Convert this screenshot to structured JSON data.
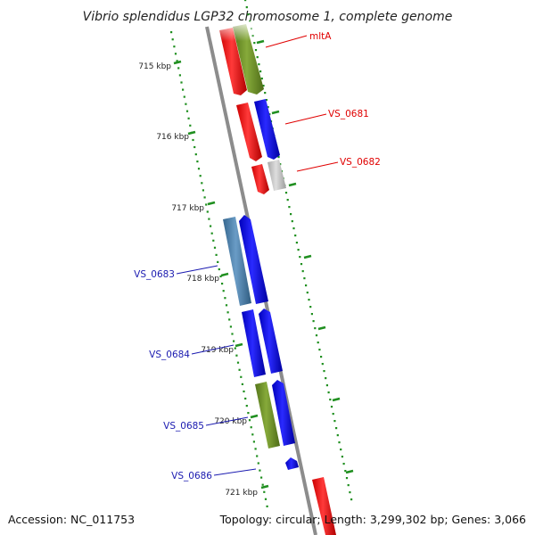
{
  "title": "Vibrio splendidus LGP32 chromosome 1, complete genome",
  "accession": "Accession: NC_011753",
  "summary": "Topology: circular; Length: 3,299,302 bp; Genes: 3,066",
  "colors": {
    "red": "#ff0000",
    "olive": "#6b8e23",
    "blue": "#0000ee",
    "steelblue": "#4682b4",
    "gray": "#bbbbbb",
    "backbone": "#888888",
    "tick": "#1f8f1f",
    "label_red": "#e00000",
    "label_blue": "#1a1ab0"
  },
  "ticks": [
    {
      "label": "715 kbp"
    },
    {
      "label": "716 kbp"
    },
    {
      "label": "717 kbp"
    },
    {
      "label": "718 kbp"
    },
    {
      "label": "719 kbp"
    },
    {
      "label": "720 kbp"
    },
    {
      "label": "721 kbp"
    }
  ],
  "gene_labels": [
    {
      "text": "mltA",
      "color": "red"
    },
    {
      "text": "VS_0681",
      "color": "red"
    },
    {
      "text": "VS_0682",
      "color": "red"
    },
    {
      "text": "VS_0683",
      "color": "blue"
    },
    {
      "text": "VS_0684",
      "color": "blue"
    },
    {
      "text": "VS_0685",
      "color": "blue"
    },
    {
      "text": "VS_0686",
      "color": "blue"
    }
  ]
}
